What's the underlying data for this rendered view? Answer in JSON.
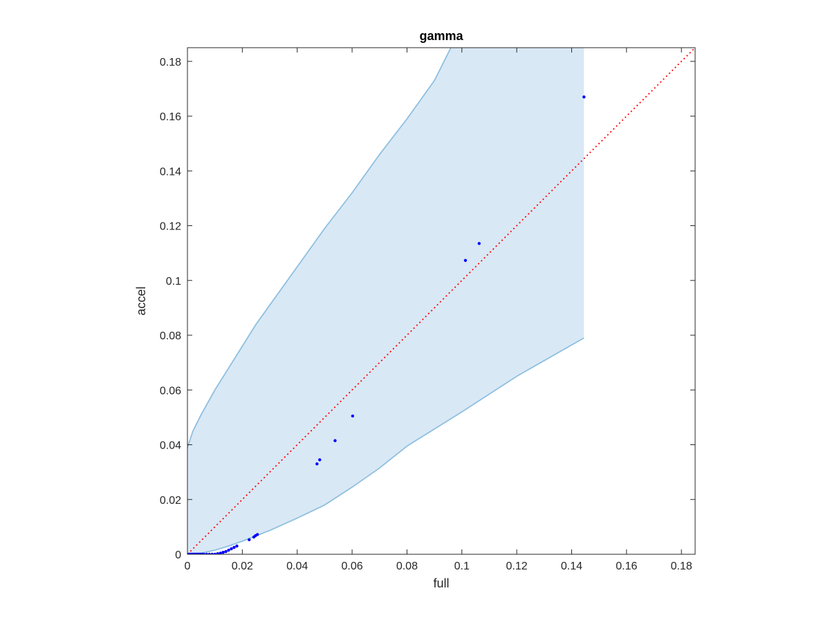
{
  "chart_data": {
    "type": "scatter",
    "title": "gamma",
    "xlabel": "full",
    "ylabel": "accel",
    "xlim": [
      0,
      0.185
    ],
    "ylim": [
      0,
      0.185
    ],
    "x_ticks": [
      "0",
      "0.02",
      "0.04",
      "0.06",
      "0.08",
      "0.1",
      "0.12",
      "0.14",
      "0.16",
      "0.18"
    ],
    "y_ticks": [
      "0",
      "0.02",
      "0.04",
      "0.06",
      "0.08",
      "0.1",
      "0.12",
      "0.14",
      "0.16",
      "0.18"
    ],
    "grid": false,
    "colors": {
      "points": "#0000ff",
      "reference_line": "#ff0000",
      "band_fill": "#d9e8f5",
      "band_edge": "#8dbfe0",
      "axis": "#262626"
    },
    "points": [
      [
        0.0,
        0.0
      ],
      [
        0.0005,
        0.0
      ],
      [
        0.001,
        0.0
      ],
      [
        0.0015,
        0.0
      ],
      [
        0.002,
        0.0
      ],
      [
        0.0025,
        0.0
      ],
      [
        0.003,
        0.0
      ],
      [
        0.0035,
        0.0
      ],
      [
        0.004,
        0.0
      ],
      [
        0.0045,
        0.0
      ],
      [
        0.005,
        0.0
      ],
      [
        0.0055,
        0.0
      ],
      [
        0.006,
        0.0
      ],
      [
        0.007,
        0.0
      ],
      [
        0.008,
        0.0
      ],
      [
        0.009,
        0.0
      ],
      [
        0.01,
        0.0
      ],
      [
        0.011,
        0.0002
      ],
      [
        0.012,
        0.0004
      ],
      [
        0.013,
        0.0007
      ],
      [
        0.014,
        0.001
      ],
      [
        0.015,
        0.0015
      ],
      [
        0.016,
        0.002
      ],
      [
        0.017,
        0.0025
      ],
      [
        0.018,
        0.003
      ],
      [
        0.0225,
        0.0053
      ],
      [
        0.0242,
        0.0063
      ],
      [
        0.0248,
        0.0068
      ],
      [
        0.0255,
        0.0072
      ],
      [
        0.0472,
        0.033
      ],
      [
        0.0482,
        0.0345
      ],
      [
        0.0538,
        0.0415
      ],
      [
        0.0602,
        0.0505
      ],
      [
        0.1013,
        0.1073
      ],
      [
        0.1063,
        0.1135
      ],
      [
        0.1445,
        0.167
      ]
    ],
    "reference_line": {
      "x": [
        0,
        0.185
      ],
      "y": [
        0,
        0.185
      ]
    },
    "band_upper": {
      "x": [
        0,
        0.002,
        0.005,
        0.01,
        0.015,
        0.02,
        0.025,
        0.03,
        0.04,
        0.05,
        0.06,
        0.07,
        0.08,
        0.09,
        0.096
      ],
      "y": [
        0.039,
        0.045,
        0.051,
        0.06,
        0.068,
        0.076,
        0.084,
        0.091,
        0.105,
        0.119,
        0.132,
        0.146,
        0.159,
        0.173,
        0.185
      ]
    },
    "band_lower": {
      "x": [
        0,
        0.005,
        0.01,
        0.015,
        0.02,
        0.03,
        0.04,
        0.05,
        0.06,
        0.07,
        0.08,
        0.1,
        0.12,
        0.1445
      ],
      "y": [
        0,
        0.0004,
        0.0015,
        0.003,
        0.0048,
        0.0087,
        0.0132,
        0.018,
        0.0245,
        0.0315,
        0.0395,
        0.052,
        0.065,
        0.079
      ]
    },
    "band_right_x": 0.1445
  }
}
